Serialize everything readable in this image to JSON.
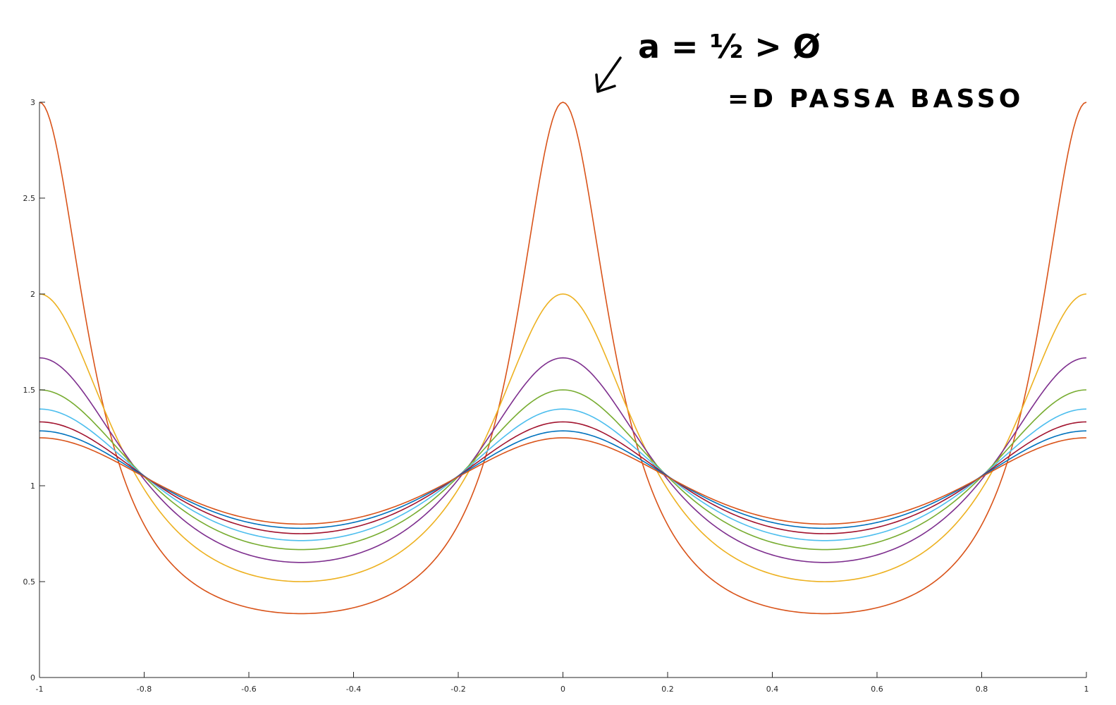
{
  "chart_data": {
    "type": "line",
    "title": "",
    "xlabel": "",
    "ylabel": "",
    "xlim": [
      -1,
      1
    ],
    "ylim": [
      0,
      3
    ],
    "grid": false,
    "x_ticks": [
      -1,
      -0.8,
      -0.6,
      -0.4,
      -0.2,
      0,
      0.2,
      0.4,
      0.6,
      0.8,
      1
    ],
    "x_tick_labels": [
      "-1",
      "-0.8",
      "-0.6",
      "-0.4",
      "-0.2",
      "0",
      "0.2",
      "0.4",
      "0.6",
      "0.8",
      "1"
    ],
    "y_ticks": [
      0,
      0.5,
      1,
      1.5,
      2,
      2.5,
      3
    ],
    "y_tick_labels": [
      "0",
      "0.5",
      "1",
      "1.5",
      "2",
      "2.5",
      "3"
    ],
    "series": [
      {
        "color": "#d95319",
        "x_at_min": [
          -0.5,
          0.5
        ],
        "x_at_max": [
          -1,
          0,
          1
        ],
        "y_max": 3.0,
        "y_min": 0.333
      },
      {
        "color": "#edb120",
        "x_at_min": [
          -0.5,
          0.5
        ],
        "x_at_max": [
          -1,
          0,
          1
        ],
        "y_max": 2.0,
        "y_min": 0.5
      },
      {
        "color": "#7e2f8e",
        "x_at_min": [
          -0.5,
          0.5
        ],
        "x_at_max": [
          -1,
          0,
          1
        ],
        "y_max": 1.667,
        "y_min": 0.6
      },
      {
        "color": "#77ac30",
        "x_at_min": [
          -0.5,
          0.5
        ],
        "x_at_max": [
          -1,
          0,
          1
        ],
        "y_max": 1.5,
        "y_min": 0.667
      },
      {
        "color": "#4dbeee",
        "x_at_min": [
          -0.5,
          0.5
        ],
        "x_at_max": [
          -1,
          0,
          1
        ],
        "y_max": 1.4,
        "y_min": 0.714
      },
      {
        "color": "#a2142f",
        "x_at_min": [
          -0.5,
          0.5
        ],
        "x_at_max": [
          -1,
          0,
          1
        ],
        "y_max": 1.333,
        "y_min": 0.75
      },
      {
        "color": "#0072bd",
        "x_at_min": [
          -0.5,
          0.5
        ],
        "x_at_max": [
          -1,
          0,
          1
        ],
        "y_max": 1.286,
        "y_min": 0.778
      },
      {
        "color": "#d95319",
        "x_at_min": [
          -0.5,
          0.5
        ],
        "x_at_max": [
          -1,
          0,
          1
        ],
        "y_max": 1.25,
        "y_min": 0.8
      }
    ],
    "annotation": {
      "line1": "a = ½ > Ø",
      "line2": "=D PASSA BASSO",
      "arrow_target_x": 0,
      "arrow_target_y": 3
    }
  }
}
